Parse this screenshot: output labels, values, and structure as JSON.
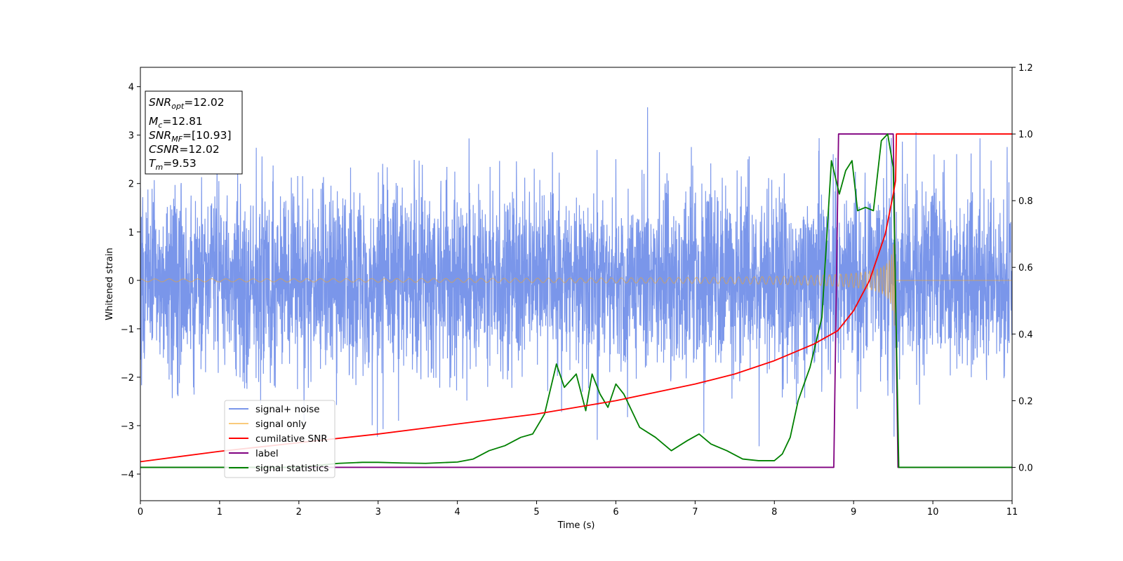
{
  "chart_data": {
    "type": "line",
    "title": "",
    "xlabel": "Time (s)",
    "ylabel": "Whitened strain",
    "y2label": "",
    "xlim": [
      0,
      11
    ],
    "ylim": [
      -4.55,
      4.4
    ],
    "y2lim": [
      -0.1,
      1.2
    ],
    "x_ticks": [
      "0",
      "1",
      "2",
      "3",
      "4",
      "5",
      "6",
      "7",
      "8",
      "9",
      "10",
      "11"
    ],
    "y_ticks": [
      "4",
      "3",
      "2",
      "1",
      "0",
      "−1",
      "−2",
      "−3",
      "−4"
    ],
    "y2_ticks": [
      "1.2",
      "1.0",
      "0.8",
      "0.6",
      "0.4",
      "0.2",
      "0.0"
    ],
    "grid": false,
    "legend_position": "lower-left",
    "info_box": {
      "snr_opt": {
        "sym": "SNR",
        "sub": "opt",
        "val": "=12.02"
      },
      "mc": {
        "sym": "M",
        "sub": "c",
        "val": "=12.81"
      },
      "snr_mf": {
        "sym": "SNR",
        "sub": "MF",
        "val": "=[10.93]"
      },
      "csnr": {
        "sym": "CSNR",
        "val": "=12.02"
      },
      "tm": {
        "sym": "T",
        "sub": "m",
        "val": "=9.53"
      }
    },
    "series": [
      {
        "name": "signal+ noise",
        "color": "#4169e1",
        "axis": "left",
        "style": "gaussian noise, std ~0.95, extremes about +4.0 / -4.15, plus chirp",
        "noise_std": 0.95
      },
      {
        "name": "signal only",
        "color": "#f5a623",
        "axis": "left",
        "style": "chirp",
        "amplitude_start": 0.03,
        "amplitude_peak": 1.6,
        "merger_time": 9.53
      },
      {
        "name": "cumilative SNR",
        "color": "#ff0000",
        "axis": "right",
        "x": [
          0,
          1,
          2,
          3,
          4,
          5,
          6,
          7,
          7.5,
          8,
          8.5,
          8.8,
          9.0,
          9.2,
          9.4,
          9.5,
          9.53,
          9.54,
          11
        ],
        "y": [
          0.017,
          0.048,
          0.074,
          0.1,
          0.13,
          0.16,
          0.2,
          0.25,
          0.28,
          0.32,
          0.37,
          0.41,
          0.47,
          0.56,
          0.7,
          0.82,
          0.86,
          1.0,
          1.0
        ]
      },
      {
        "name": "label",
        "color": "#800080",
        "axis": "right",
        "x": [
          0,
          8.75,
          8.81,
          9.5,
          9.56,
          11
        ],
        "y": [
          0.0,
          0.0,
          1.0,
          1.0,
          0.0,
          0.0
        ]
      },
      {
        "name": "signal statistics",
        "color": "#008000",
        "axis": "right",
        "x": [
          0,
          1,
          1.5,
          2,
          2.2,
          2.5,
          2.8,
          3,
          3.3,
          3.6,
          4,
          4.2,
          4.4,
          4.6,
          4.8,
          4.95,
          5.1,
          5.25,
          5.35,
          5.5,
          5.62,
          5.7,
          5.8,
          5.9,
          6.0,
          6.1,
          6.3,
          6.5,
          6.7,
          6.9,
          7.05,
          7.2,
          7.4,
          7.6,
          7.8,
          8.0,
          8.1,
          8.2,
          8.3,
          8.45,
          8.6,
          8.72,
          8.82,
          8.9,
          8.98,
          9.05,
          9.15,
          9.25,
          9.35,
          9.43,
          9.5,
          9.57,
          9.65,
          11
        ],
        "y": [
          0.0,
          0.0,
          0.0,
          0.0,
          0.005,
          0.012,
          0.015,
          0.015,
          0.013,
          0.012,
          0.016,
          0.025,
          0.05,
          0.065,
          0.09,
          0.1,
          0.16,
          0.31,
          0.24,
          0.28,
          0.17,
          0.28,
          0.22,
          0.18,
          0.25,
          0.22,
          0.12,
          0.09,
          0.05,
          0.08,
          0.1,
          0.07,
          0.05,
          0.025,
          0.02,
          0.02,
          0.04,
          0.09,
          0.2,
          0.3,
          0.45,
          0.92,
          0.82,
          0.89,
          0.92,
          0.77,
          0.78,
          0.77,
          0.98,
          1.0,
          0.9,
          0.0,
          0.0,
          0.0
        ]
      }
    ]
  }
}
